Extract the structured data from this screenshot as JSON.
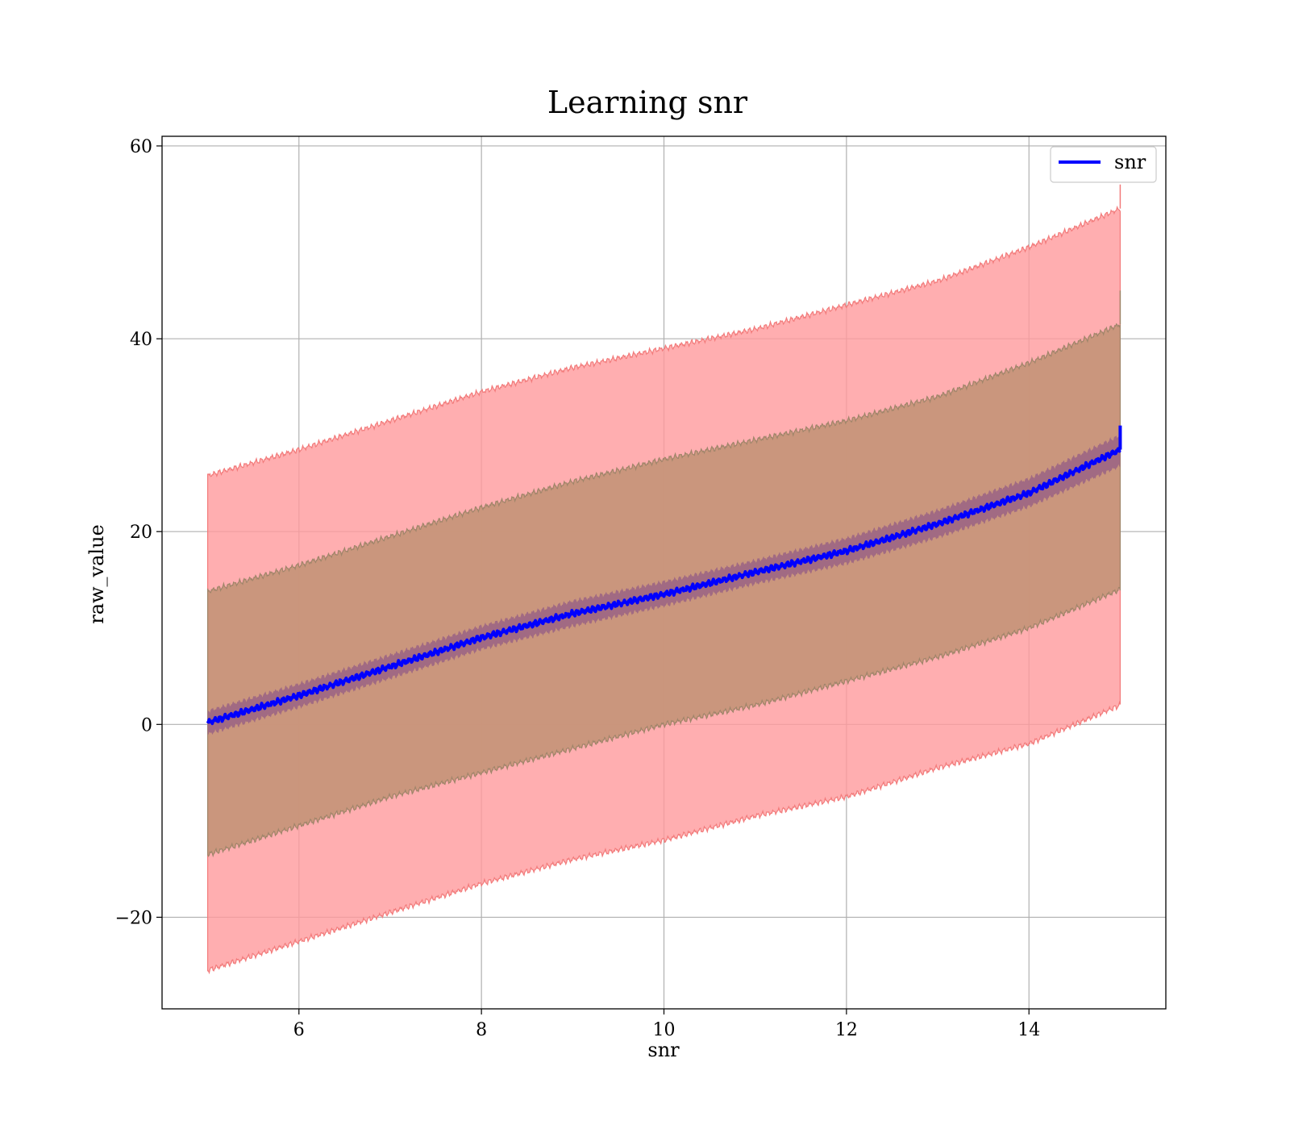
{
  "chart_data": {
    "type": "line",
    "title": "Learning snr",
    "xlabel": "snr",
    "ylabel": "raw_value",
    "xlim": [
      4.5,
      15.5
    ],
    "ylim": [
      -29.5,
      61
    ],
    "xticks": [
      6,
      8,
      10,
      12,
      14
    ],
    "yticks": [
      -20,
      0,
      20,
      40,
      60
    ],
    "ytick_labels": [
      "−20",
      "0",
      "20",
      "40",
      "60"
    ],
    "grid": true,
    "legend": {
      "placement": "top-right",
      "entries": [
        "snr"
      ]
    },
    "colors": {
      "line": "#0000ff",
      "band_outer": "#ff9a9c",
      "band_outer_edge": "#f27b7b",
      "band_middle": "#c7957a",
      "band_middle_edge": "#a0856a",
      "band_inner": "#9a6384"
    },
    "series": [
      {
        "name": "snr",
        "x": [
          5,
          6,
          7,
          8,
          9,
          10,
          11,
          12,
          13,
          14,
          15
        ],
        "y": [
          0.2,
          3.0,
          6.0,
          9.0,
          11.5,
          13.5,
          15.8,
          18.0,
          20.8,
          24.0,
          28.5
        ],
        "end_spike": 31,
        "band_inner": {
          "lower": [
            -1.0,
            1.8,
            4.8,
            7.8,
            10.2,
            12.3,
            14.6,
            16.7,
            19.4,
            22.6,
            26.8
          ],
          "upper": [
            1.4,
            4.2,
            7.2,
            10.2,
            12.8,
            14.8,
            17.0,
            19.3,
            22.2,
            25.5,
            30.0
          ]
        },
        "band_middle": {
          "lower": [
            -13.5,
            -10.5,
            -7.5,
            -5.0,
            -2.5,
            0.0,
            2.0,
            4.5,
            7.0,
            10.0,
            14.0
          ],
          "upper": [
            13.8,
            16.5,
            19.5,
            22.5,
            25.2,
            27.5,
            29.5,
            31.5,
            34.0,
            37.5,
            41.5
          ]
        },
        "band_outer": {
          "lower": [
            -25.5,
            -22.5,
            -19.5,
            -16.5,
            -14.0,
            -12.0,
            -9.5,
            -7.5,
            -4.5,
            -2.0,
            2.0
          ],
          "upper": [
            25.8,
            28.5,
            31.5,
            34.5,
            37.0,
            39.0,
            41.0,
            43.5,
            46.0,
            49.5,
            53.5
          ]
        }
      }
    ]
  }
}
